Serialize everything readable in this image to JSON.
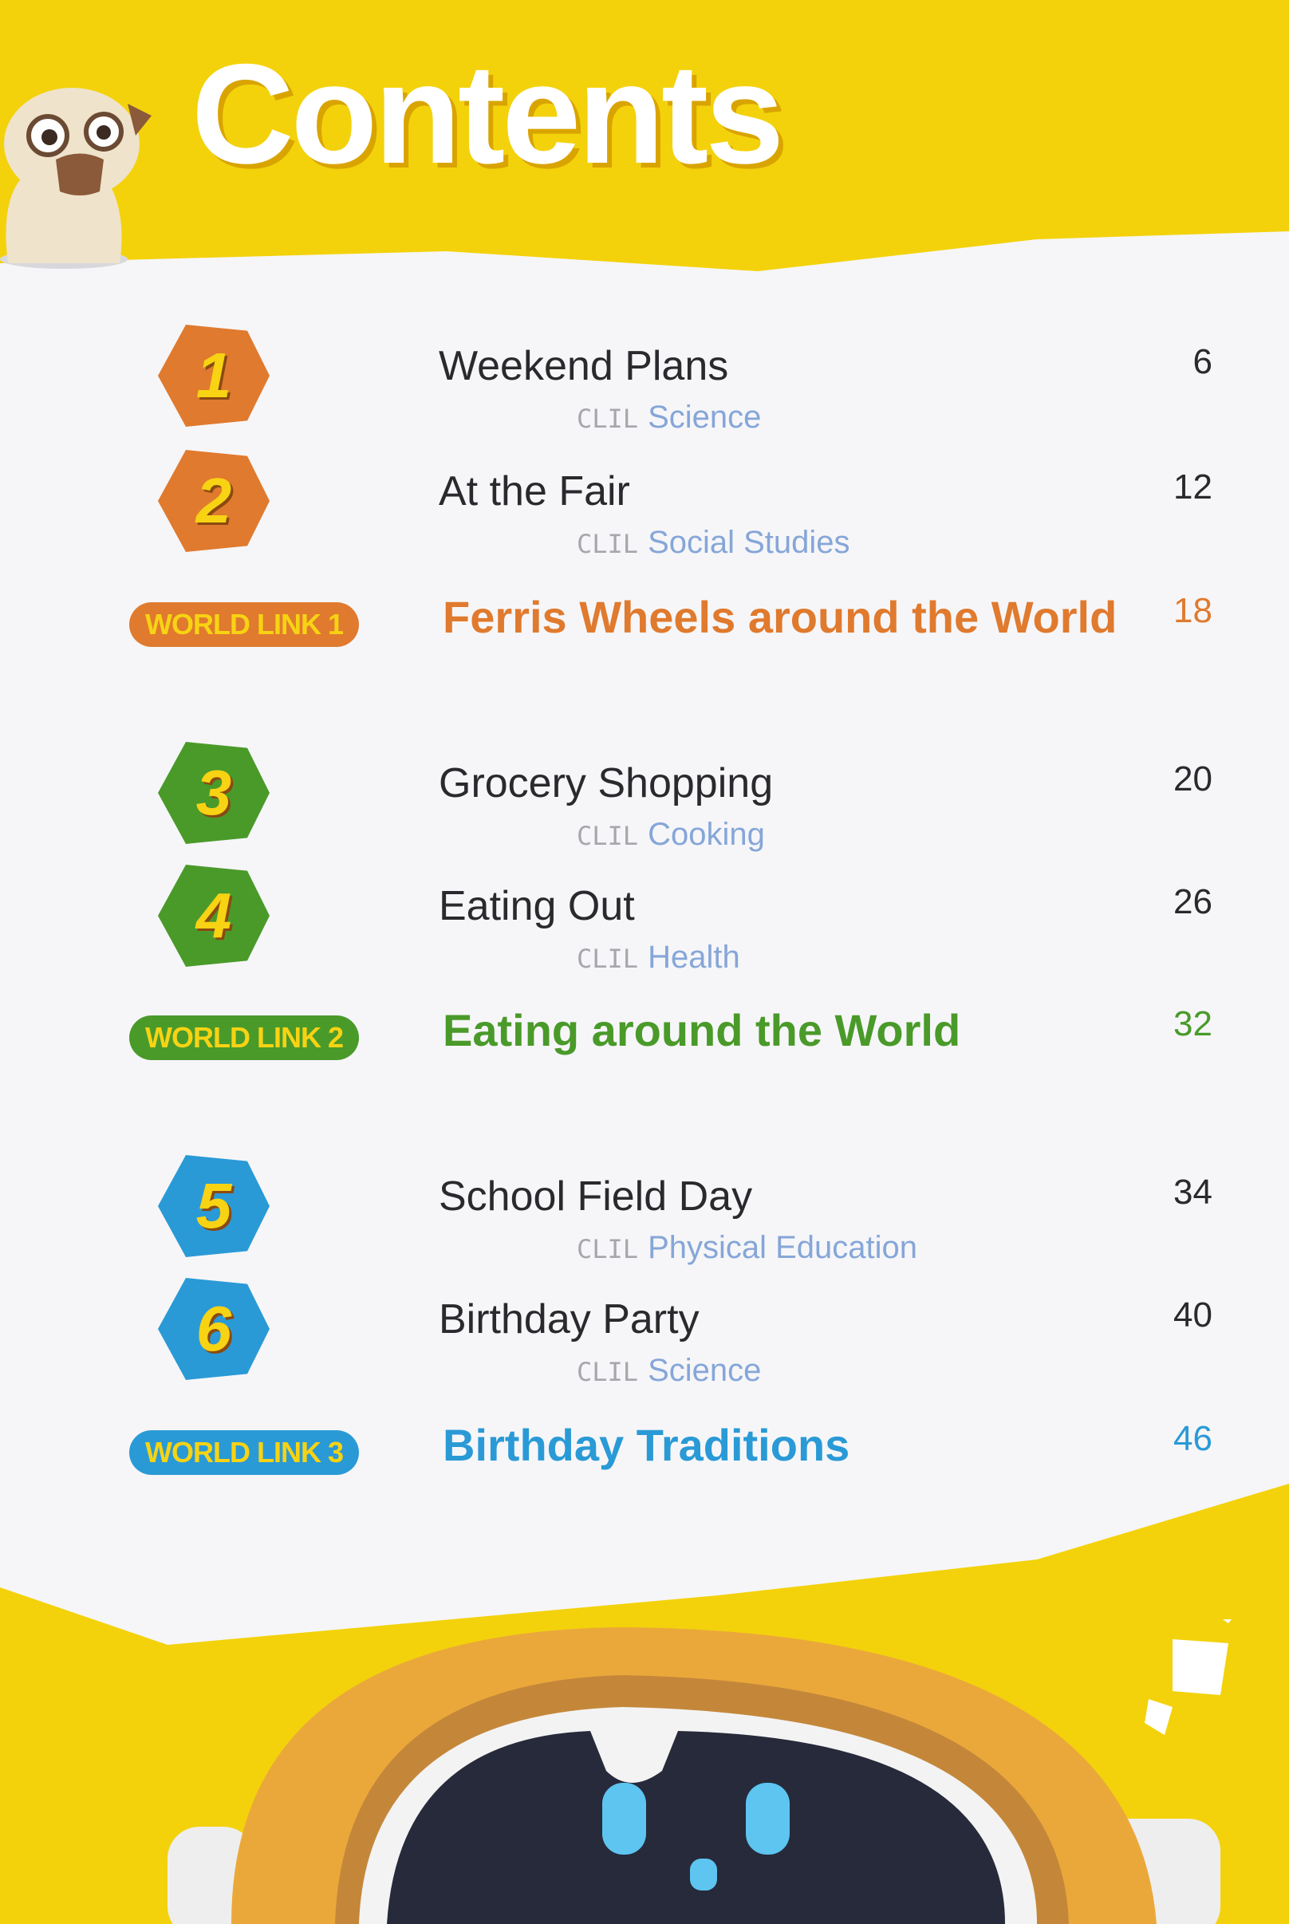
{
  "title": "Contents",
  "colors": {
    "background": "#f3d20c",
    "orange": "#e07a2e",
    "green": "#4a9a2a",
    "blue": "#2a9ad6",
    "clil_label": "#a5a7ad",
    "clil_subject": "#86a6d8"
  },
  "units": [
    {
      "number": "1",
      "title": "Weekend Plans",
      "clil": "CLIL",
      "subject": "Science",
      "page": "6"
    },
    {
      "number": "2",
      "title": "At the Fair",
      "clil": "CLIL",
      "subject": "Social Studies",
      "page": "12"
    },
    {
      "number": "3",
      "title": "Grocery Shopping",
      "clil": "CLIL",
      "subject": "Cooking",
      "page": "20"
    },
    {
      "number": "4",
      "title": "Eating Out",
      "clil": "CLIL",
      "subject": "Health",
      "page": "26"
    },
    {
      "number": "5",
      "title": "School Field Day",
      "clil": "CLIL",
      "subject": "Physical Education",
      "page": "34"
    },
    {
      "number": "6",
      "title": "Birthday Party",
      "clil": "CLIL",
      "subject": "Science",
      "page": "40"
    }
  ],
  "world_links": [
    {
      "badge": "WORLD LINK 1",
      "title": "Ferris Wheels around the World",
      "page": "18"
    },
    {
      "badge": "WORLD LINK 2",
      "title": "Eating around the World",
      "page": "32"
    },
    {
      "badge": "WORLD LINK 3",
      "title": "Birthday Traditions",
      "page": "46"
    }
  ],
  "icons": {
    "mascot_top": "pug-icon",
    "mascot_bottom": "robot-icon"
  }
}
